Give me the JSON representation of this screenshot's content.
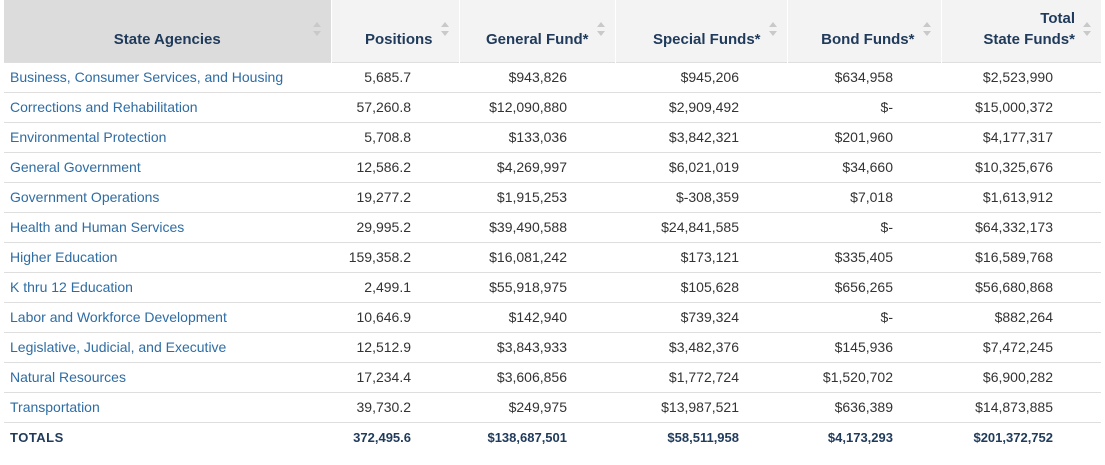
{
  "table": {
    "headers": [
      {
        "label": "State Agencies"
      },
      {
        "label": "Positions"
      },
      {
        "label": "General Fund*"
      },
      {
        "label": "Special Funds*"
      },
      {
        "label": "Bond Funds*"
      },
      {
        "label": "Total",
        "label2": "State Funds*"
      }
    ],
    "rows": [
      {
        "agency": "Business, Consumer Services, and Housing",
        "positions": "5,685.7",
        "general": "$943,826",
        "special": "$945,206",
        "bond": "$634,958",
        "total": "$2,523,990"
      },
      {
        "agency": "Corrections and Rehabilitation",
        "positions": "57,260.8",
        "general": "$12,090,880",
        "special": "$2,909,492",
        "bond": "$-",
        "total": "$15,000,372"
      },
      {
        "agency": "Environmental Protection",
        "positions": "5,708.8",
        "general": "$133,036",
        "special": "$3,842,321",
        "bond": "$201,960",
        "total": "$4,177,317"
      },
      {
        "agency": "General Government",
        "positions": "12,586.2",
        "general": "$4,269,997",
        "special": "$6,021,019",
        "bond": "$34,660",
        "total": "$10,325,676"
      },
      {
        "agency": "Government Operations",
        "positions": "19,277.2",
        "general": "$1,915,253",
        "special": "$-308,359",
        "bond": "$7,018",
        "total": "$1,613,912"
      },
      {
        "agency": "Health and Human Services",
        "positions": "29,995.2",
        "general": "$39,490,588",
        "special": "$24,841,585",
        "bond": "$-",
        "total": "$64,332,173"
      },
      {
        "agency": "Higher Education",
        "positions": "159,358.2",
        "general": "$16,081,242",
        "special": "$173,121",
        "bond": "$335,405",
        "total": "$16,589,768"
      },
      {
        "agency": "K thru 12 Education",
        "positions": "2,499.1",
        "general": "$55,918,975",
        "special": "$105,628",
        "bond": "$656,265",
        "total": "$56,680,868"
      },
      {
        "agency": "Labor and Workforce Development",
        "positions": "10,646.9",
        "general": "$142,940",
        "special": "$739,324",
        "bond": "$-",
        "total": "$882,264"
      },
      {
        "agency": "Legislative, Judicial, and Executive",
        "positions": "12,512.9",
        "general": "$3,843,933",
        "special": "$3,482,376",
        "bond": "$145,936",
        "total": "$7,472,245"
      },
      {
        "agency": "Natural Resources",
        "positions": "17,234.4",
        "general": "$3,606,856",
        "special": "$1,772,724",
        "bond": "$1,520,702",
        "total": "$6,900,282"
      },
      {
        "agency": "Transportation",
        "positions": "39,730.2",
        "general": "$249,975",
        "special": "$13,987,521",
        "bond": "$636,389",
        "total": "$14,873,885"
      }
    ],
    "totals": {
      "agency": "TOTALS",
      "positions": "372,495.6",
      "general": "$138,687,501",
      "special": "$58,511,958",
      "bond": "$4,173,293",
      "total": "$201,372,752"
    }
  },
  "icons": {
    "sort": "sort-arrows-icon"
  },
  "colors": {
    "header_bg": "#f3f3f3",
    "agency_header_bg": "#dcdcdc",
    "link": "#2e6da4",
    "header_text": "#1f3a5a"
  }
}
